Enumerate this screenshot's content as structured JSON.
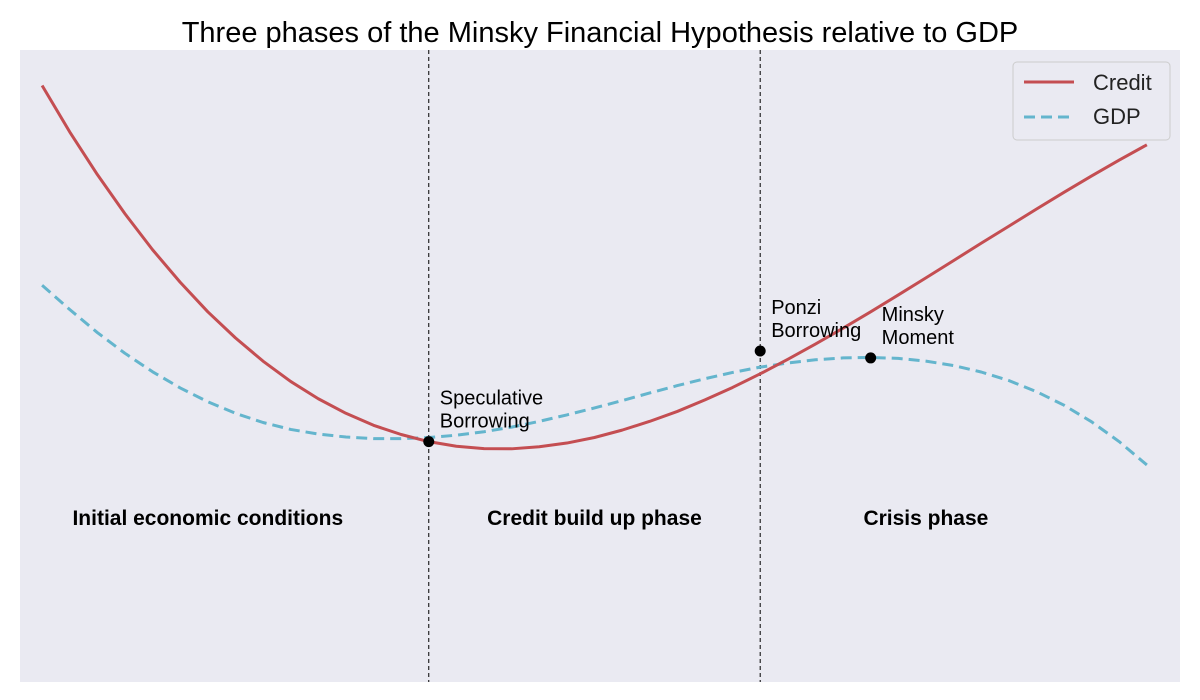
{
  "chart_data": {
    "type": "line",
    "title": "Three phases of the Minsky Financial Hypothesis relative to GDP",
    "xlabel": "",
    "ylabel": "",
    "grid": false,
    "legend_position": "top-right",
    "xlim": [
      0.3,
      10.8
    ],
    "ylim": [
      -7.7,
      19.7
    ],
    "phase_boundaries": [
      4.0,
      7.0
    ],
    "series": [
      {
        "name": "Credit",
        "color": "#c44e52",
        "linestyle": "solid",
        "x": [
          0.5,
          0.75,
          1.0,
          1.25,
          1.5,
          1.75,
          2.0,
          2.25,
          2.5,
          2.75,
          3.0,
          3.25,
          3.5,
          3.75,
          4.0,
          4.25,
          4.5,
          4.75,
          5.0,
          5.25,
          5.5,
          5.75,
          6.0,
          6.25,
          6.5,
          6.75,
          7.0,
          7.25,
          7.5,
          7.75,
          8.0,
          8.25,
          8.5,
          8.75,
          9.0,
          9.25,
          9.5,
          9.75,
          10.0,
          10.25,
          10.5
        ],
        "y": [
          18.16,
          16.15,
          14.3,
          12.6,
          11.04,
          9.63,
          8.35,
          7.22,
          6.21,
          5.33,
          4.58,
          3.95,
          3.43,
          3.03,
          2.72,
          2.52,
          2.42,
          2.41,
          2.5,
          2.66,
          2.9,
          3.22,
          3.6,
          4.03,
          4.53,
          5.07,
          5.66,
          6.29,
          6.95,
          7.64,
          8.35,
          9.08,
          9.82,
          10.57,
          11.32,
          12.06,
          12.8,
          13.53,
          14.24,
          14.93,
          15.59
        ]
      },
      {
        "name": "GDP",
        "color": "#64b5cd",
        "linestyle": "dashed",
        "x": [
          0.5,
          0.75,
          1.0,
          1.25,
          1.5,
          1.75,
          2.0,
          2.25,
          2.5,
          2.75,
          3.0,
          3.25,
          3.5,
          3.75,
          4.0,
          4.25,
          4.5,
          4.75,
          5.0,
          5.25,
          5.5,
          5.75,
          6.0,
          6.25,
          6.5,
          6.75,
          7.0,
          7.25,
          7.5,
          7.75,
          8.0,
          8.25,
          8.5,
          8.75,
          9.0,
          9.25,
          9.5,
          9.75,
          10.0,
          10.25,
          10.5
        ],
        "y": [
          9.5,
          8.45,
          7.45,
          6.55,
          5.75,
          5.05,
          4.45,
          3.95,
          3.55,
          3.25,
          3.05,
          2.92,
          2.85,
          2.85,
          2.9,
          3.0,
          3.15,
          3.35,
          3.6,
          3.88,
          4.18,
          4.5,
          4.83,
          5.15,
          5.45,
          5.72,
          5.95,
          6.13,
          6.27,
          6.35,
          6.37,
          6.33,
          6.21,
          6.02,
          5.74,
          5.37,
          4.89,
          4.3,
          3.58,
          2.72,
          1.71
        ]
      }
    ],
    "annotations": [
      {
        "lines": [
          "Speculative",
          "Borrowing"
        ],
        "x": 4.0,
        "y": 2.72
      },
      {
        "lines": [
          "Ponzi",
          "Borrowing"
        ],
        "x": 7.0,
        "y": 6.65
      },
      {
        "lines": [
          "Minsky",
          "Moment"
        ],
        "x": 8.0,
        "y": 6.35
      }
    ],
    "phase_labels": [
      {
        "text": "Initial economic conditions",
        "x": 2.0,
        "y": -0.9
      },
      {
        "text": "Credit build up phase",
        "x": 5.5,
        "y": -0.9
      },
      {
        "text": "Crisis phase",
        "x": 8.5,
        "y": -0.9
      }
    ]
  }
}
